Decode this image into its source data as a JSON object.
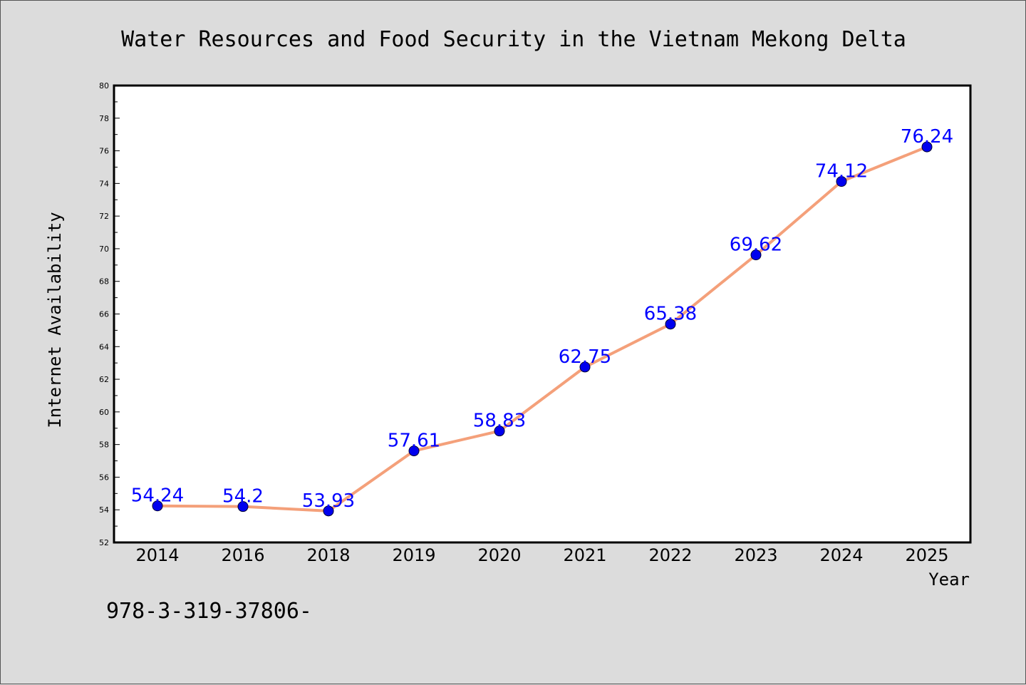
{
  "chart_data": {
    "type": "line",
    "title": "Water Resources and Food Security in the Vietnam Mekong Delta",
    "xlabel": "Year",
    "ylabel": "Internet Availability",
    "categories": [
      "2014",
      "2016",
      "2018",
      "2019",
      "2020",
      "2021",
      "2022",
      "2023",
      "2024",
      "2025"
    ],
    "series": [
      {
        "values": [
          54.24,
          54.2,
          53.93,
          57.61,
          58.83,
          62.75,
          65.38,
          69.62,
          74.12,
          76.24
        ],
        "labels": [
          "54.24",
          "54.2",
          "53.93",
          "57.61",
          "58.83",
          "62.75",
          "65.38",
          "69.62",
          "74.12",
          "76.24"
        ]
      }
    ],
    "ylim": [
      52,
      80
    ],
    "yticks": [
      "52",
      "54",
      "56",
      "58",
      "60",
      "62",
      "64",
      "66",
      "68",
      "70",
      "72",
      "74",
      "76",
      "78",
      "80"
    ],
    "grid": false,
    "legend": "none"
  },
  "footer": {
    "text": "978-3-319-37806-"
  },
  "colors": {
    "line": "#f4a07a",
    "marker": "#0000ee",
    "label": "#0000ff",
    "background": "#dcdcdc",
    "plot_background": "#ffffff"
  }
}
